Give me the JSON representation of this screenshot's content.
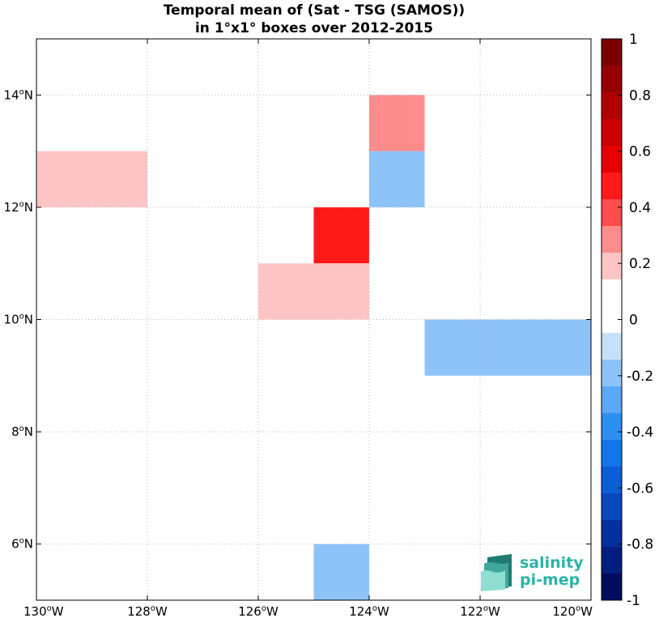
{
  "chart_data": {
    "type": "heatmap",
    "title_lines": [
      "Temporal mean of (Sat - TSG (SAMOS))",
      "in 1°x1° boxes over 2012-2015"
    ],
    "xlabel": "",
    "ylabel": "",
    "xlim": [
      -130,
      -120
    ],
    "ylim": [
      5,
      15
    ],
    "grid": true,
    "x_ticks": [
      {
        "value": -130,
        "deg": "130",
        "hemi": "W"
      },
      {
        "value": -128,
        "deg": "128",
        "hemi": "W"
      },
      {
        "value": -126,
        "deg": "126",
        "hemi": "W"
      },
      {
        "value": -124,
        "deg": "124",
        "hemi": "W"
      },
      {
        "value": -122,
        "deg": "122",
        "hemi": "W"
      },
      {
        "value": -120,
        "deg": "120",
        "hemi": "W"
      }
    ],
    "y_ticks": [
      {
        "value": 6,
        "deg": "6",
        "hemi": "N"
      },
      {
        "value": 8,
        "deg": "8",
        "hemi": "N"
      },
      {
        "value": 10,
        "deg": "10",
        "hemi": "N"
      },
      {
        "value": 12,
        "deg": "12",
        "hemi": "N"
      },
      {
        "value": 14,
        "deg": "14",
        "hemi": "N"
      }
    ],
    "cells": [
      {
        "lon_min": -124,
        "lon_max": -123,
        "lat_min": 13,
        "lat_max": 14,
        "value": 0.25
      },
      {
        "lon_min": -124,
        "lon_max": -123,
        "lat_min": 12,
        "lat_max": 13,
        "value": -0.15
      },
      {
        "lon_min": -130,
        "lon_max": -128,
        "lat_min": 12,
        "lat_max": 13,
        "value": 0.15
      },
      {
        "lon_min": -125,
        "lon_max": -124,
        "lat_min": 11,
        "lat_max": 12,
        "value": 0.45
      },
      {
        "lon_min": -126,
        "lon_max": -124,
        "lat_min": 10,
        "lat_max": 11,
        "value": 0.15
      },
      {
        "lon_min": -123,
        "lon_max": -120,
        "lat_min": 9,
        "lat_max": 10,
        "value": -0.15
      },
      {
        "lon_min": -125,
        "lon_max": -124,
        "lat_min": 5,
        "lat_max": 6,
        "value": -0.15
      }
    ],
    "colorbar": {
      "min": -1,
      "max": 1,
      "ticks": [
        "1",
        "0.8",
        "0.6",
        "0.4",
        "0.2",
        "0",
        "-0.2",
        "-0.4",
        "-0.6",
        "-0.8",
        "-1"
      ],
      "colors_top_to_bottom": [
        "#7a0000",
        "#950000",
        "#b00000",
        "#cc0000",
        "#e60000",
        "#ff1a1a",
        "#ff4d4d",
        "#ff8c8c",
        "#ffc4c4",
        "#ffffff",
        "#ffffff",
        "#c6e0fc",
        "#8ec3fa",
        "#5aa8f7",
        "#2e8ff2",
        "#1177e8",
        "#0a5fd6",
        "#0847bf",
        "#06309f",
        "#041e80",
        "#020c5e"
      ]
    }
  },
  "logo": {
    "line1": "salinity",
    "line2": "pi-mep"
  },
  "colors": {
    "grid": "#b8b8b8",
    "logo_text": "#2bb3a6",
    "logo_mark_dark": "#1f7a72",
    "logo_mark_light": "#8fded2"
  }
}
